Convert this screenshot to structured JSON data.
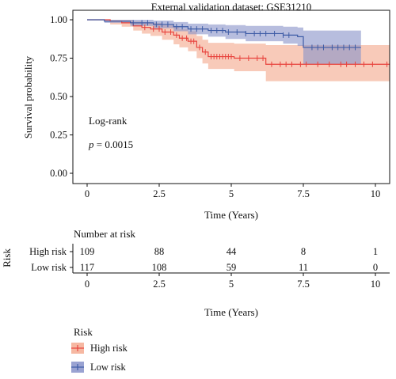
{
  "chart_data": {
    "type": "line",
    "subtype": "kaplan-meier",
    "title": "External validation dataset: GSE31210",
    "xlabel": "Time (Years)",
    "ylabel": "Survival probability",
    "xlim": [
      -1.0,
      10.5
    ],
    "ylim": [
      0,
      1
    ],
    "xticks": [
      "0",
      "2.5",
      "5",
      "7.5",
      "10"
    ],
    "yticks": [
      "0.00",
      "0.25",
      "0.50",
      "0.75",
      "1.00"
    ],
    "grid": false,
    "annotation": {
      "line1": "Log-rank",
      "p_label": "p",
      "p_value": " = 0.0015"
    },
    "series": [
      {
        "name": "High risk",
        "color": "#e8433d",
        "band_color": "#f4a98e",
        "steps": [
          [
            0,
            1.0
          ],
          [
            0.8,
            0.99
          ],
          [
            1.2,
            0.98
          ],
          [
            1.6,
            0.96
          ],
          [
            1.9,
            0.95
          ],
          [
            2.2,
            0.94
          ],
          [
            2.6,
            0.92
          ],
          [
            3.0,
            0.9
          ],
          [
            3.2,
            0.88
          ],
          [
            3.5,
            0.86
          ],
          [
            3.8,
            0.82
          ],
          [
            4.0,
            0.79
          ],
          [
            4.2,
            0.76
          ],
          [
            5.1,
            0.75
          ],
          [
            6.2,
            0.71
          ],
          [
            10.5,
            0.71
          ]
        ],
        "lower": [
          [
            0,
            1.0
          ],
          [
            0.8,
            0.97
          ],
          [
            1.2,
            0.955
          ],
          [
            1.6,
            0.93
          ],
          [
            1.9,
            0.91
          ],
          [
            2.2,
            0.895
          ],
          [
            2.6,
            0.87
          ],
          [
            3.0,
            0.84
          ],
          [
            3.2,
            0.82
          ],
          [
            3.5,
            0.795
          ],
          [
            3.8,
            0.75
          ],
          [
            4.0,
            0.715
          ],
          [
            4.2,
            0.68
          ],
          [
            5.1,
            0.665
          ],
          [
            6.2,
            0.6
          ],
          [
            10.5,
            0.6
          ]
        ],
        "upper": [
          [
            0,
            1.0
          ],
          [
            0.8,
            1.0
          ],
          [
            1.2,
            1.0
          ],
          [
            1.6,
            0.99
          ],
          [
            1.9,
            0.985
          ],
          [
            2.2,
            0.98
          ],
          [
            2.6,
            0.965
          ],
          [
            3.0,
            0.955
          ],
          [
            3.2,
            0.94
          ],
          [
            3.5,
            0.925
          ],
          [
            3.8,
            0.895
          ],
          [
            4.0,
            0.87
          ],
          [
            4.2,
            0.85
          ],
          [
            5.1,
            0.845
          ],
          [
            6.2,
            0.835
          ],
          [
            10.5,
            0.835
          ]
        ],
        "censor_x": [
          2.0,
          2.3,
          2.5,
          2.7,
          2.9,
          3.1,
          3.3,
          3.45,
          3.6,
          3.7,
          3.9,
          4.1,
          4.3,
          4.4,
          4.5,
          4.6,
          4.7,
          4.8,
          4.9,
          5.0,
          5.3,
          5.6,
          5.9,
          6.1,
          6.4,
          6.7,
          6.9,
          7.1,
          7.4,
          7.6,
          8.0,
          8.4,
          8.8,
          9.0,
          9.3,
          9.6,
          9.9,
          10.4
        ]
      },
      {
        "name": "Low risk",
        "color": "#3e5ca6",
        "band_color": "#8a95c9",
        "steps": [
          [
            0,
            1.0
          ],
          [
            0.6,
            0.99
          ],
          [
            1.5,
            0.98
          ],
          [
            2.3,
            0.97
          ],
          [
            3.0,
            0.955
          ],
          [
            3.5,
            0.94
          ],
          [
            4.2,
            0.93
          ],
          [
            4.8,
            0.92
          ],
          [
            5.5,
            0.91
          ],
          [
            6.8,
            0.9
          ],
          [
            7.3,
            0.89
          ],
          [
            7.5,
            0.82
          ],
          [
            9.5,
            0.82
          ]
        ],
        "lower": [
          [
            0,
            1.0
          ],
          [
            0.6,
            0.98
          ],
          [
            1.5,
            0.96
          ],
          [
            2.3,
            0.945
          ],
          [
            3.0,
            0.925
          ],
          [
            3.5,
            0.905
          ],
          [
            4.2,
            0.89
          ],
          [
            4.8,
            0.875
          ],
          [
            5.5,
            0.86
          ],
          [
            6.8,
            0.845
          ],
          [
            7.3,
            0.83
          ],
          [
            7.5,
            0.71
          ],
          [
            9.5,
            0.71
          ]
        ],
        "upper": [
          [
            0,
            1.0
          ],
          [
            0.6,
            1.0
          ],
          [
            1.5,
            1.0
          ],
          [
            2.3,
            0.995
          ],
          [
            3.0,
            0.985
          ],
          [
            3.5,
            0.975
          ],
          [
            4.2,
            0.97
          ],
          [
            4.8,
            0.965
          ],
          [
            5.5,
            0.96
          ],
          [
            6.8,
            0.955
          ],
          [
            7.3,
            0.95
          ],
          [
            7.5,
            0.93
          ],
          [
            9.5,
            0.93
          ]
        ],
        "censor_x": [
          1.6,
          1.9,
          2.1,
          2.4,
          2.6,
          2.8,
          3.1,
          3.3,
          3.6,
          3.8,
          4.0,
          4.3,
          4.5,
          4.7,
          4.9,
          5.2,
          5.5,
          5.8,
          6.0,
          6.2,
          6.5,
          6.8,
          7.0,
          7.8,
          8.0,
          8.2,
          8.5,
          8.7,
          8.9,
          9.1,
          9.3
        ]
      }
    ]
  },
  "risk_table": {
    "title": "Number at risk",
    "ylabel": "Risk",
    "xlabel": "Time (Years)",
    "xticks": [
      "0",
      "2.5",
      "5",
      "7.5",
      "10"
    ],
    "rows": [
      {
        "label": "High risk",
        "counts": [
          "109",
          "88",
          "44",
          "8",
          "1"
        ]
      },
      {
        "label": "Low risk",
        "counts": [
          "117",
          "108",
          "59",
          "11",
          "0"
        ]
      }
    ]
  },
  "legend": {
    "title": "Risk",
    "items": [
      {
        "label": "High risk",
        "color": "#e8433d"
      },
      {
        "label": "Low risk",
        "color": "#3e5ca6"
      }
    ]
  }
}
